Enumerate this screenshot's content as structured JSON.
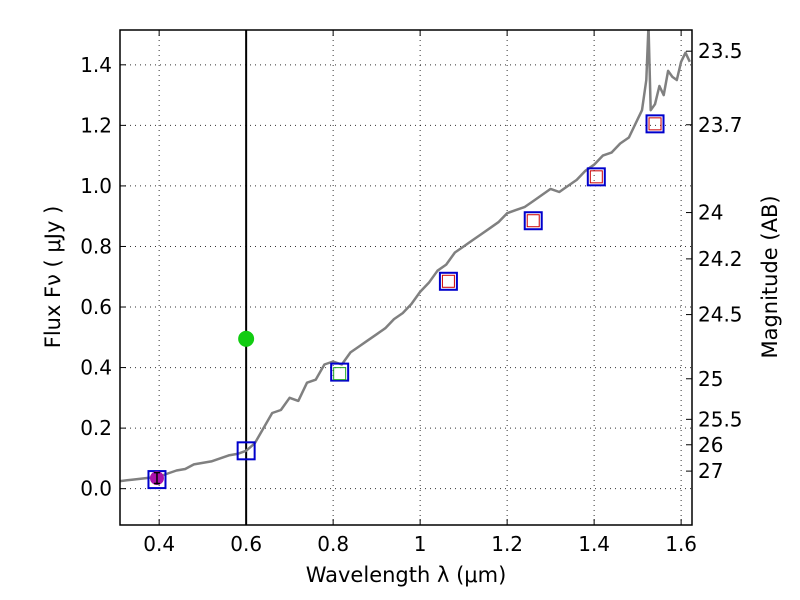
{
  "chart_data": {
    "type": "line",
    "title": "",
    "xlabel": "Wavelength  λ (μm)",
    "ylabel": "Flux  Fν  ( μJy )",
    "y2label": "Magnitude (AB)",
    "xlim": [
      0.31,
      1.625
    ],
    "ylim": [
      -0.12,
      1.515
    ],
    "grid": true,
    "x_ticks": [
      0.4,
      0.6,
      0.8,
      1.0,
      1.2,
      1.4,
      1.6
    ],
    "x_tick_labels": [
      "0.4",
      "0.6",
      "0.8",
      "1",
      "1.2",
      "1.4",
      "1.6"
    ],
    "y_ticks": [
      0.0,
      0.2,
      0.4,
      0.6,
      0.8,
      1.0,
      1.2,
      1.4
    ],
    "y_tick_labels": [
      "0.0",
      "0.2",
      "0.4",
      "0.6",
      "0.8",
      "1.0",
      "1.2",
      "1.4"
    ],
    "magnitude_ticks": [
      {
        "label": "23.5",
        "flux": 1.445
      },
      {
        "label": "23.7",
        "flux": 1.202
      },
      {
        "label": "24",
        "flux": 0.912
      },
      {
        "label": "24.2",
        "flux": 0.759
      },
      {
        "label": "24.5",
        "flux": 0.575
      },
      {
        "label": "25",
        "flux": 0.363
      },
      {
        "label": "25.5",
        "flux": 0.229
      },
      {
        "label": "26",
        "flux": 0.145
      },
      {
        "label": "27",
        "flux": 0.058
      }
    ],
    "vertical_line_x": 0.6,
    "series": [
      {
        "name": "model spectrum",
        "kind": "line",
        "color": "#808080",
        "x": [
          0.31,
          0.34,
          0.37,
          0.4,
          0.42,
          0.44,
          0.46,
          0.48,
          0.5,
          0.52,
          0.54,
          0.56,
          0.58,
          0.6,
          0.62,
          0.64,
          0.66,
          0.68,
          0.7,
          0.72,
          0.74,
          0.76,
          0.78,
          0.8,
          0.82,
          0.84,
          0.86,
          0.88,
          0.9,
          0.92,
          0.94,
          0.96,
          0.98,
          1.0,
          1.02,
          1.04,
          1.06,
          1.08,
          1.1,
          1.12,
          1.14,
          1.16,
          1.18,
          1.2,
          1.22,
          1.24,
          1.26,
          1.28,
          1.3,
          1.32,
          1.34,
          1.36,
          1.38,
          1.4,
          1.42,
          1.44,
          1.46,
          1.48,
          1.5,
          1.51,
          1.52,
          1.525,
          1.53,
          1.54,
          1.55,
          1.56,
          1.57,
          1.58,
          1.59,
          1.6,
          1.61,
          1.62
        ],
        "y": [
          0.025,
          0.03,
          0.035,
          0.04,
          0.05,
          0.06,
          0.065,
          0.08,
          0.085,
          0.09,
          0.1,
          0.11,
          0.115,
          0.125,
          0.15,
          0.2,
          0.25,
          0.26,
          0.3,
          0.29,
          0.35,
          0.36,
          0.41,
          0.42,
          0.41,
          0.45,
          0.47,
          0.49,
          0.51,
          0.53,
          0.56,
          0.58,
          0.61,
          0.65,
          0.68,
          0.72,
          0.74,
          0.78,
          0.8,
          0.82,
          0.84,
          0.86,
          0.88,
          0.91,
          0.92,
          0.93,
          0.95,
          0.97,
          0.99,
          0.98,
          1.0,
          1.02,
          1.05,
          1.07,
          1.1,
          1.11,
          1.14,
          1.16,
          1.22,
          1.25,
          1.35,
          1.53,
          1.25,
          1.27,
          1.33,
          1.3,
          1.38,
          1.36,
          1.35,
          1.41,
          1.44,
          1.41
        ]
      },
      {
        "name": "photometry boxes",
        "kind": "square-marker",
        "color": "#0000cc",
        "x": [
          0.395,
          0.6,
          0.815,
          1.065,
          1.26,
          1.405,
          1.54
        ],
        "y": [
          0.03,
          0.125,
          0.385,
          0.685,
          0.885,
          1.03,
          1.205
        ]
      },
      {
        "name": "model points",
        "kind": "small-square-marker",
        "color": "#cc0000",
        "x": [
          1.065,
          1.26,
          1.405,
          1.54
        ],
        "y": [
          0.685,
          0.885,
          1.03,
          1.205
        ]
      },
      {
        "name": "green photometry",
        "kind": "small-square-marker",
        "color": "#22aa22",
        "x": [
          0.815
        ],
        "y": [
          0.38
        ]
      },
      {
        "name": "measured point",
        "kind": "errorbar-circle",
        "color": "#aa11aa",
        "x": [
          0.395
        ],
        "y": [
          0.035
        ],
        "err": [
          0.018
        ]
      },
      {
        "name": "highlighted point",
        "kind": "circle",
        "color": "#11cc11",
        "x": [
          0.6
        ],
        "y": [
          0.495
        ]
      }
    ]
  }
}
